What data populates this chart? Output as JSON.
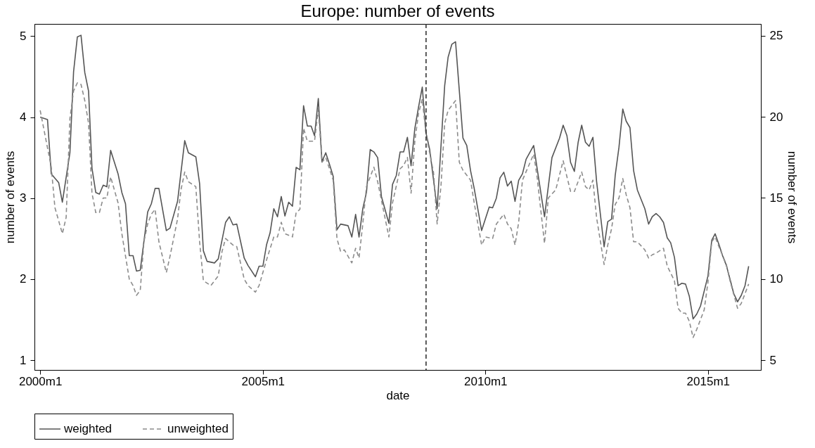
{
  "chart_data": {
    "type": "line",
    "title": "Europe: number of events",
    "xlabel": "date",
    "ylabel": "number of events",
    "y2label": "number of events",
    "xlim": [
      "1999-11-15",
      "2016-03-10"
    ],
    "xticks": [
      {
        "value": "2000-01",
        "label": "2000m1"
      },
      {
        "value": "2005-01",
        "label": "2005m1"
      },
      {
        "value": "2010-01",
        "label": "2010m1"
      },
      {
        "value": "2015-01",
        "label": "2015m1"
      }
    ],
    "ylim": [
      0.88,
      5.15
    ],
    "yticks": [
      1,
      2,
      3,
      4,
      5
    ],
    "y2lim": [
      4.4,
      25.73
    ],
    "y2ticks": [
      5,
      10,
      15,
      20,
      25
    ],
    "grid": false,
    "legend": "bottom",
    "marker": "none",
    "ref_lines": [
      {
        "axis": "x",
        "value": "2008-09",
        "color": "#333333",
        "line_style": "dashed"
      }
    ],
    "series": [
      {
        "name": "weighted",
        "color": "#555555",
        "line_style": "solid",
        "axis": "y",
        "x": [
          "2000-01",
          "2000-03",
          "2000-04",
          "2000-06",
          "2000-07",
          "2000-09",
          "2000-10",
          "2000-11",
          "2000-12",
          "2001-01",
          "2001-02",
          "2001-03",
          "2001-04",
          "2001-05",
          "2001-06",
          "2001-07",
          "2001-08",
          "2001-10",
          "2001-11",
          "2001-12",
          "2002-01",
          "2002-02",
          "2002-03",
          "2002-04",
          "2002-06",
          "2002-07",
          "2002-08",
          "2002-09",
          "2002-11",
          "2002-12",
          "2003-02",
          "2003-04",
          "2003-05",
          "2003-07",
          "2003-08",
          "2003-09",
          "2003-10",
          "2003-12",
          "2004-01",
          "2004-03",
          "2004-04",
          "2004-05",
          "2004-06",
          "2004-08",
          "2004-09",
          "2004-11",
          "2004-12",
          "2005-01",
          "2005-02",
          "2005-03",
          "2005-04",
          "2005-05",
          "2005-06",
          "2005-07",
          "2005-08",
          "2005-09",
          "2005-10",
          "2005-11",
          "2005-12",
          "2006-01",
          "2006-02",
          "2006-03",
          "2006-04",
          "2006-05",
          "2006-06",
          "2006-07",
          "2006-08",
          "2006-09",
          "2006-10",
          "2006-12",
          "2007-01",
          "2007-02",
          "2007-03",
          "2007-04",
          "2007-05",
          "2007-06",
          "2007-07",
          "2007-08",
          "2007-09",
          "2007-11",
          "2007-12",
          "2008-01",
          "2008-02",
          "2008-03",
          "2008-04",
          "2008-05",
          "2008-06",
          "2008-07",
          "2008-08",
          "2008-09",
          "2008-10",
          "2008-12",
          "2009-02",
          "2009-03",
          "2009-04",
          "2009-05",
          "2009-07",
          "2009-08",
          "2009-09",
          "2009-10",
          "2009-12",
          "2010-02",
          "2010-03",
          "2010-04",
          "2010-05",
          "2010-06",
          "2010-07",
          "2010-08",
          "2010-09",
          "2010-10",
          "2010-11",
          "2010-12",
          "2011-02",
          "2011-03",
          "2011-05",
          "2011-07",
          "2011-09",
          "2011-10",
          "2011-11",
          "2011-12",
          "2012-01",
          "2012-02",
          "2012-03",
          "2012-04",
          "2012-05",
          "2012-06",
          "2012-07",
          "2012-09",
          "2012-10",
          "2012-11",
          "2012-12",
          "2013-01",
          "2013-02",
          "2013-03",
          "2013-04",
          "2013-05",
          "2013-06",
          "2013-08",
          "2013-09",
          "2013-10",
          "2013-11",
          "2013-12",
          "2014-01",
          "2014-02",
          "2014-03",
          "2014-04",
          "2014-05",
          "2014-06",
          "2014-07",
          "2014-08",
          "2014-09",
          "2014-10",
          "2014-11",
          "2015-01",
          "2015-02",
          "2015-03",
          "2015-04",
          "2015-05",
          "2015-06",
          "2015-07",
          "2015-08",
          "2015-09",
          "2015-10",
          "2015-11",
          "2015-12"
        ],
        "values": [
          4.0,
          3.97,
          3.3,
          3.19,
          2.95,
          3.56,
          4.56,
          4.99,
          5.01,
          4.55,
          4.32,
          3.37,
          3.07,
          3.05,
          3.16,
          3.14,
          3.59,
          3.3,
          3.07,
          2.93,
          2.29,
          2.29,
          2.1,
          2.11,
          2.83,
          2.93,
          3.12,
          3.12,
          2.6,
          2.63,
          2.96,
          3.71,
          3.56,
          3.51,
          3.18,
          2.35,
          2.22,
          2.2,
          2.25,
          2.7,
          2.77,
          2.67,
          2.68,
          2.26,
          2.17,
          2.03,
          2.16,
          2.16,
          2.43,
          2.57,
          2.87,
          2.77,
          3.02,
          2.78,
          2.95,
          2.9,
          3.38,
          3.35,
          4.14,
          3.89,
          3.89,
          3.77,
          4.23,
          3.45,
          3.56,
          3.42,
          3.27,
          2.61,
          2.68,
          2.66,
          2.52,
          2.8,
          2.52,
          2.87,
          3.07,
          3.6,
          3.57,
          3.5,
          3.02,
          2.69,
          3.17,
          3.28,
          3.57,
          3.57,
          3.75,
          3.4,
          3.86,
          4.12,
          4.37,
          3.8,
          3.6,
          2.87,
          4.39,
          4.74,
          4.9,
          4.93,
          3.74,
          3.65,
          3.34,
          3.12,
          2.6,
          2.89,
          2.88,
          3.0,
          3.25,
          3.32,
          3.15,
          3.21,
          2.96,
          3.22,
          3.3,
          3.48,
          3.65,
          3.37,
          2.77,
          3.5,
          3.74,
          3.9,
          3.77,
          3.44,
          3.33,
          3.69,
          3.9,
          3.69,
          3.64,
          3.75,
          3.21,
          2.4,
          2.71,
          2.74,
          3.28,
          3.63,
          4.1,
          3.95,
          3.87,
          3.34,
          3.1,
          2.87,
          2.68,
          2.77,
          2.81,
          2.77,
          2.7,
          2.51,
          2.45,
          2.27,
          1.92,
          1.95,
          1.94,
          1.79,
          1.51,
          1.57,
          1.67,
          2.04,
          2.48,
          2.56,
          2.43,
          2.29,
          2.17,
          2.0,
          1.82,
          1.72,
          1.8,
          1.92,
          2.16
        ]
      },
      {
        "name": "unweighted",
        "color": "#8c8c8c",
        "line_style": "dashed",
        "axis": "y2",
        "x": [
          "2000-01",
          "2000-04",
          "2000-05",
          "2000-07",
          "2000-08",
          "2000-09",
          "2000-10",
          "2000-11",
          "2000-12",
          "2001-01",
          "2001-02",
          "2001-03",
          "2001-04",
          "2001-05",
          "2001-06",
          "2001-07",
          "2001-08",
          "2001-10",
          "2001-11",
          "2002-01",
          "2002-02",
          "2002-03",
          "2002-04",
          "2002-05",
          "2002-06",
          "2002-07",
          "2002-08",
          "2002-09",
          "2002-11",
          "2002-12",
          "2003-02",
          "2003-03",
          "2003-04",
          "2003-05",
          "2003-07",
          "2003-08",
          "2003-09",
          "2003-11",
          "2004-01",
          "2004-02",
          "2004-03",
          "2004-05",
          "2004-06",
          "2004-08",
          "2004-09",
          "2004-11",
          "2004-12",
          "2005-02",
          "2005-04",
          "2005-05",
          "2005-06",
          "2005-07",
          "2005-09",
          "2005-10",
          "2005-11",
          "2005-12",
          "2006-01",
          "2006-03",
          "2006-04",
          "2006-05",
          "2006-06",
          "2006-08",
          "2006-09",
          "2006-10",
          "2006-11",
          "2007-01",
          "2007-02",
          "2007-03",
          "2007-04",
          "2007-05",
          "2007-07",
          "2007-08",
          "2007-11",
          "2007-12",
          "2008-02",
          "2008-03",
          "2008-04",
          "2008-05",
          "2008-06",
          "2008-07",
          "2008-08",
          "2008-09",
          "2008-11",
          "2008-12",
          "2009-01",
          "2009-02",
          "2009-03",
          "2009-05",
          "2009-06",
          "2009-07",
          "2009-09",
          "2009-10",
          "2009-12",
          "2010-01",
          "2010-03",
          "2010-04",
          "2010-06",
          "2010-07",
          "2010-08",
          "2010-09",
          "2010-10",
          "2010-11",
          "2011-02",
          "2011-03",
          "2011-05",
          "2011-06",
          "2011-08",
          "2011-10",
          "2011-11",
          "2011-12",
          "2012-01",
          "2012-03",
          "2012-04",
          "2012-05",
          "2012-06",
          "2012-07",
          "2012-09",
          "2012-10",
          "2012-11",
          "2012-12",
          "2013-01",
          "2013-02",
          "2013-03",
          "2013-04",
          "2013-05",
          "2013-06",
          "2013-08",
          "2013-09",
          "2013-10",
          "2013-11",
          "2014-01",
          "2014-02",
          "2014-04",
          "2014-05",
          "2014-06",
          "2014-07",
          "2014-08",
          "2014-09",
          "2014-10",
          "2014-12",
          "2015-01",
          "2015-02",
          "2015-03",
          "2015-04",
          "2015-06",
          "2015-07",
          "2015-09",
          "2015-10",
          "2015-11",
          "2015-12"
        ],
        "values": [
          20.4,
          16.9,
          14.4,
          12.8,
          13.8,
          19.9,
          21.6,
          22.1,
          22.0,
          21.0,
          19.6,
          15.3,
          14.1,
          14.1,
          15.0,
          15.0,
          16.3,
          14.7,
          12.8,
          10.0,
          9.6,
          9.0,
          9.3,
          12.3,
          13.4,
          14.0,
          14.3,
          12.3,
          10.4,
          11.4,
          13.7,
          15.5,
          16.6,
          16.0,
          15.7,
          12.3,
          9.9,
          9.6,
          10.2,
          11.7,
          12.5,
          12.1,
          12.0,
          10.0,
          9.6,
          9.2,
          9.6,
          11.2,
          12.6,
          12.6,
          13.5,
          12.8,
          12.6,
          14.1,
          14.3,
          19.3,
          18.5,
          18.5,
          20.5,
          17.2,
          17.5,
          16.1,
          12.5,
          11.7,
          11.8,
          11.0,
          11.9,
          11.3,
          13.4,
          15.7,
          16.9,
          16.0,
          12.6,
          14.7,
          16.8,
          17.0,
          17.5,
          15.3,
          18.5,
          20.2,
          21.1,
          18.9,
          16.6,
          13.4,
          15.7,
          19.6,
          20.4,
          21.0,
          17.2,
          16.7,
          16.1,
          14.7,
          12.1,
          12.6,
          12.5,
          13.4,
          14.0,
          13.4,
          13.1,
          12.1,
          13.5,
          16.1,
          17.7,
          16.3,
          12.2,
          15.0,
          15.5,
          17.3,
          16.3,
          15.4,
          15.4,
          16.6,
          15.7,
          15.5,
          16.1,
          13.8,
          10.9,
          12.1,
          13.1,
          14.6,
          15.0,
          16.2,
          15.2,
          14.4,
          12.3,
          12.3,
          11.8,
          11.3,
          11.5,
          11.6,
          11.9,
          10.8,
          9.9,
          8.2,
          7.9,
          7.9,
          7.4,
          6.4,
          6.9,
          8.1,
          9.8,
          12.3,
          12.6,
          12.0,
          10.9,
          9.9,
          8.2,
          8.5,
          9.1,
          9.7
        ]
      }
    ]
  }
}
